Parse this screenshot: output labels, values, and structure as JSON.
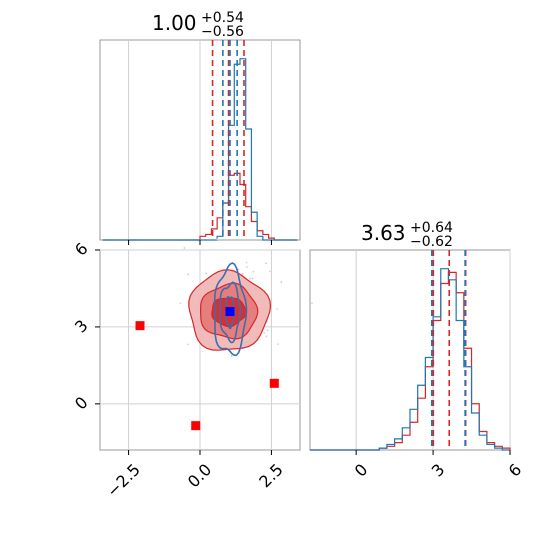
{
  "chart_data": [
    {
      "type": "histogram",
      "panel": "marginal-x",
      "title": {
        "value": "1.00",
        "plus": "+0.54",
        "minus": "−0.56"
      },
      "bins": [
        -3.4,
        -3.2,
        -3.0,
        -2.8,
        -2.6,
        -2.4,
        -2.2,
        -2.0,
        -1.8,
        -1.6,
        -1.4,
        -1.2,
        -1.0,
        -0.8,
        -0.6,
        -0.4,
        -0.2,
        0.0,
        0.2,
        0.4,
        0.6,
        0.8,
        1.0,
        1.2,
        1.4,
        1.6,
        1.8,
        2.0,
        2.2,
        2.4,
        2.6,
        2.8,
        3.0,
        3.2,
        3.4
      ],
      "series": [
        {
          "color": "#d62728",
          "values": [
            0,
            0,
            0,
            0,
            0,
            0,
            0,
            0,
            0,
            0,
            0,
            0,
            0,
            0,
            0,
            0,
            0,
            0.02,
            0.03,
            0.06,
            0.12,
            0.2,
            0.35,
            0.36,
            0.3,
            0.18,
            0.1,
            0.05,
            0.03,
            0.01,
            0.0,
            0,
            0,
            0
          ]
        },
        {
          "color": "#1f77b4",
          "values": [
            0,
            0,
            0,
            0,
            0,
            0,
            0,
            0,
            0,
            0,
            0,
            0,
            0,
            0,
            0,
            0,
            0,
            0,
            0,
            0,
            0.02,
            0.2,
            0.62,
            0.95,
            0.98,
            0.6,
            0.15,
            0.02,
            0,
            0,
            0,
            0,
            0,
            0
          ]
        }
      ],
      "vlines": [
        {
          "x": 0.44,
          "color": "#d62728"
        },
        {
          "x": 1.0,
          "color": "#d62728"
        },
        {
          "x": 1.54,
          "color": "#d62728"
        },
        {
          "x": 0.8,
          "color": "#1f77b4"
        },
        {
          "x": 1.05,
          "color": "#1f77b4"
        },
        {
          "x": 1.3,
          "color": "#1f77b4"
        }
      ],
      "xlim": [
        -3.5,
        3.5
      ]
    },
    {
      "type": "scatter-contour",
      "panel": "joint",
      "xlim": [
        -3.5,
        3.5
      ],
      "ylim": [
        -1.8,
        6.0
      ],
      "xticks": [
        "−2.5",
        "0.0",
        "2.5"
      ],
      "xtick_values": [
        -2.5,
        0.0,
        2.5
      ],
      "yticks": [
        "0",
        "3",
        "6"
      ],
      "ytick_values": [
        0,
        3,
        6
      ],
      "grid": true,
      "red_markers": [
        {
          "x": -2.1,
          "y": 3.05
        },
        {
          "x": -0.15,
          "y": -0.85
        },
        {
          "x": 2.6,
          "y": 0.8
        }
      ],
      "blue_marker": {
        "x": 1.05,
        "y": 3.6
      },
      "contours": {
        "red_levels": [
          {
            "rx": 1.4,
            "ry": 1.55
          },
          {
            "rx": 1.0,
            "ry": 1.05
          },
          {
            "rx": 0.6,
            "ry": 0.55
          }
        ],
        "blue_levels": [
          {
            "rx": 0.55,
            "ry": 1.7
          },
          {
            "rx": 0.35,
            "ry": 1.1
          },
          {
            "rx": 0.15,
            "ry": 0.6
          }
        ],
        "center": {
          "x": 1.0,
          "y": 3.6
        }
      }
    },
    {
      "type": "histogram",
      "panel": "marginal-y",
      "title": {
        "value": "3.63",
        "plus": "+0.64",
        "minus": "−0.62"
      },
      "xlim": [
        -1.8,
        6.0
      ],
      "xticks": [
        "0",
        "3",
        "6"
      ],
      "xtick_values": [
        0,
        3,
        6
      ],
      "bins": [
        -1.8,
        -1.5,
        -1.2,
        -0.9,
        -0.6,
        -0.3,
        0.0,
        0.3,
        0.6,
        0.9,
        1.2,
        1.5,
        1.8,
        2.1,
        2.4,
        2.7,
        3.0,
        3.3,
        3.6,
        3.9,
        4.2,
        4.5,
        4.8,
        5.1,
        5.4,
        5.7,
        6.0
      ],
      "series": [
        {
          "color": "#d62728",
          "values": [
            0,
            0,
            0,
            0,
            0,
            0,
            0,
            0,
            0,
            0.01,
            0.02,
            0.04,
            0.08,
            0.15,
            0.28,
            0.45,
            0.7,
            0.9,
            0.96,
            0.85,
            0.55,
            0.25,
            0.1,
            0.04,
            0.02,
            0.01
          ]
        },
        {
          "color": "#1f77b4",
          "values": [
            0,
            0,
            0,
            0,
            0,
            0,
            0,
            0,
            0,
            0.01,
            0.03,
            0.06,
            0.12,
            0.22,
            0.35,
            0.5,
            0.72,
            0.98,
            0.92,
            0.7,
            0.45,
            0.2,
            0.08,
            0.03,
            0.01,
            0
          ]
        }
      ],
      "vlines": [
        {
          "x": 3.01,
          "color": "#d62728"
        },
        {
          "x": 3.63,
          "color": "#d62728"
        },
        {
          "x": 4.27,
          "color": "#d62728"
        },
        {
          "x": 2.95,
          "color": "#1f77b4"
        },
        {
          "x": 4.25,
          "color": "#1f77b4"
        }
      ]
    }
  ]
}
